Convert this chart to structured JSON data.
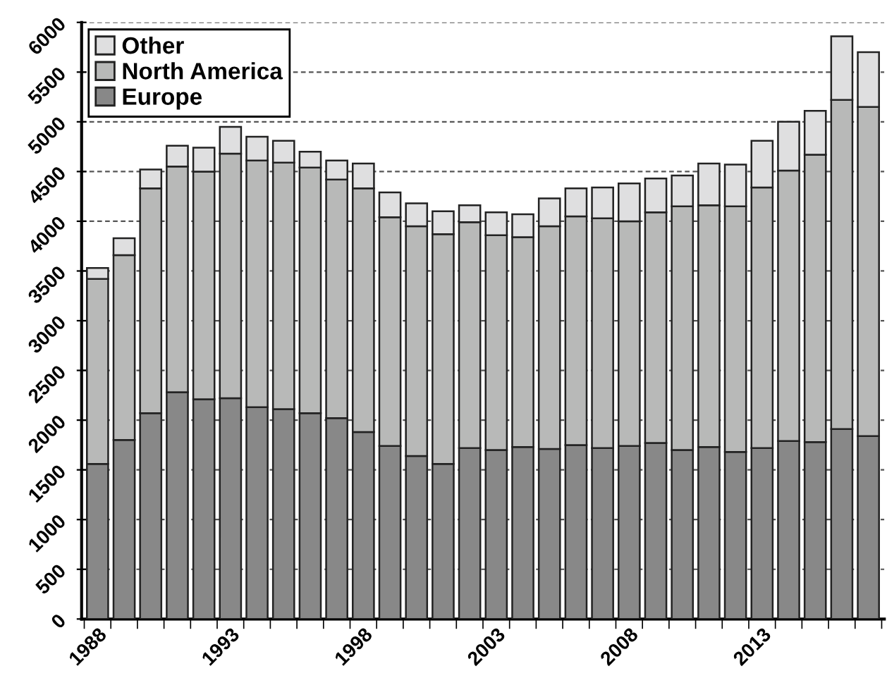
{
  "chart_data": {
    "type": "bar",
    "stacked": true,
    "categories": [
      "1988",
      null,
      null,
      null,
      null,
      "1993",
      null,
      null,
      null,
      null,
      "1998",
      null,
      null,
      null,
      null,
      "2003",
      null,
      null,
      null,
      null,
      "2008",
      null,
      null,
      null,
      null,
      "2013",
      null,
      null,
      null,
      null
    ],
    "series": [
      {
        "name": "Europe",
        "color": "#888888",
        "values": [
          1560,
          1800,
          2070,
          2280,
          2210,
          2220,
          2130,
          2110,
          2070,
          2020,
          1880,
          1740,
          1640,
          1560,
          1720,
          1700,
          1730,
          1710,
          1750,
          1720,
          1740,
          1770,
          1700,
          1730,
          1680,
          1720,
          1790,
          1780,
          1910,
          1840
        ]
      },
      {
        "name": "North America",
        "color": "#b8b9b8",
        "values": [
          1860,
          1860,
          2260,
          2270,
          2290,
          2460,
          2480,
          2480,
          2470,
          2400,
          2450,
          2300,
          2310,
          2310,
          2270,
          2160,
          2110,
          2240,
          2300,
          2310,
          2260,
          2320,
          2450,
          2430,
          2470,
          2620,
          2720,
          2890,
          3310,
          3310
        ]
      },
      {
        "name": "Other",
        "color": "#dfdfe0",
        "values": [
          110,
          170,
          190,
          210,
          240,
          270,
          240,
          220,
          160,
          190,
          250,
          250,
          230,
          230,
          170,
          230,
          230,
          280,
          280,
          310,
          380,
          340,
          310,
          420,
          420,
          470,
          490,
          440,
          640,
          550
        ]
      }
    ],
    "ylim": [
      0,
      6000
    ],
    "yticks": [
      0,
      500,
      1000,
      1500,
      2000,
      2500,
      3000,
      3500,
      4000,
      4500,
      5000,
      5500,
      6000
    ],
    "grid": "y",
    "legend": "top left"
  }
}
